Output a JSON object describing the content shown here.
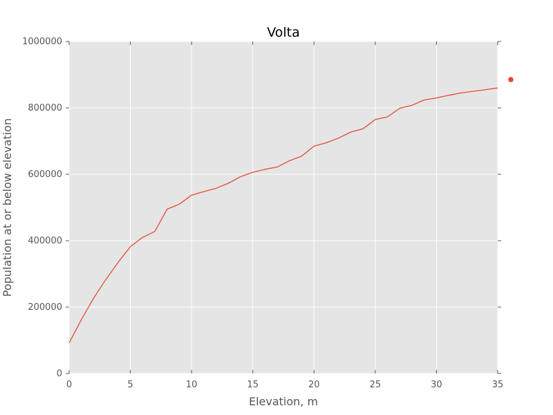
{
  "chart_data": {
    "type": "line",
    "title": "Volta",
    "xlabel": "Elevation, m",
    "ylabel": "Population at or below elevation",
    "xlim": [
      0,
      35
    ],
    "ylim": [
      0,
      1000000
    ],
    "xticks": [
      "0",
      "5",
      "10",
      "15",
      "20",
      "25",
      "30",
      "35"
    ],
    "yticks": [
      "0",
      "200000",
      "400000",
      "600000",
      "800000",
      "1000000"
    ],
    "grid": true,
    "series": [
      {
        "color": "#e24a33",
        "x": [
          0,
          1,
          2,
          3,
          4,
          5,
          6,
          7,
          8,
          9,
          10,
          11,
          12,
          13,
          14,
          15,
          16,
          17,
          18,
          19,
          20,
          21,
          22,
          23,
          24,
          25,
          26,
          27,
          28,
          29,
          30,
          31,
          32,
          33,
          34,
          35
        ],
        "y": [
          92000,
          162000,
          227000,
          283000,
          335000,
          382000,
          410000,
          428000,
          495000,
          510000,
          537000,
          548000,
          558000,
          573000,
          593000,
          606000,
          615000,
          622000,
          641000,
          655000,
          685000,
          695000,
          709000,
          727000,
          737000,
          765000,
          773000,
          799000,
          808000,
          824000,
          830000,
          838000,
          845000,
          850000,
          855000,
          860000
        ]
      }
    ],
    "extra_marker": {
      "color": "#e24a33"
    }
  }
}
